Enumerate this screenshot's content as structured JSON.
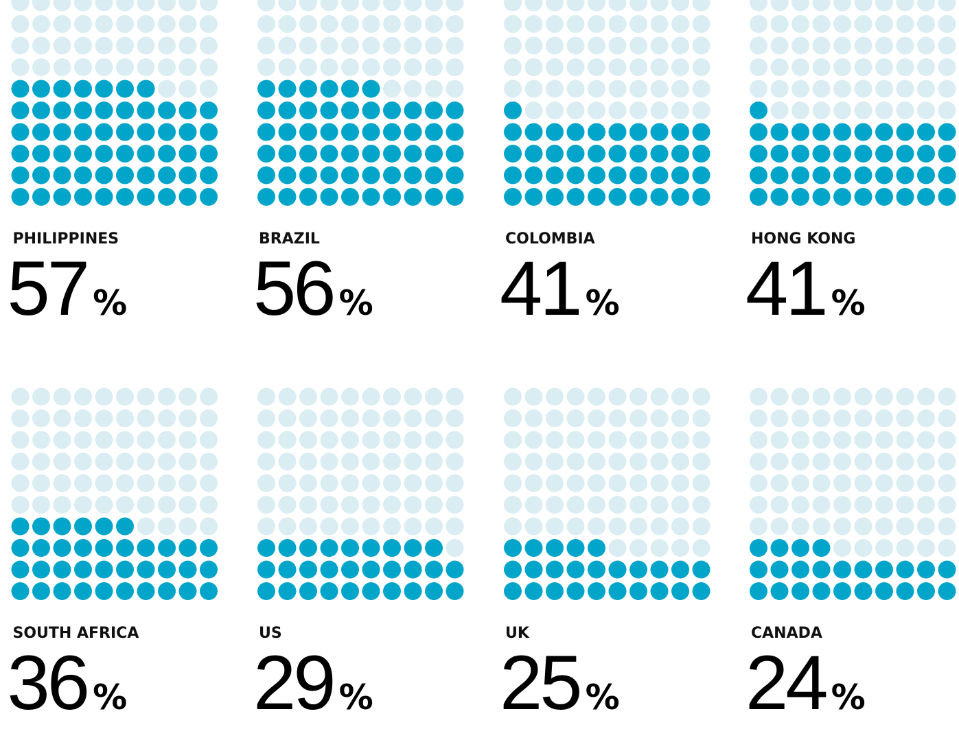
{
  "chart_data": {
    "type": "waffle",
    "categories": [
      "PHILIPPINES",
      "BRAZIL",
      "COLOMBIA",
      "HONG KONG",
      "SOUTH AFRICA",
      "US",
      "UK",
      "CANADA"
    ],
    "values": [
      57,
      56,
      41,
      41,
      36,
      29,
      25,
      24
    ],
    "unit": "%",
    "color": "#00a5c9",
    "empty_color": "#daedf2"
  }
}
